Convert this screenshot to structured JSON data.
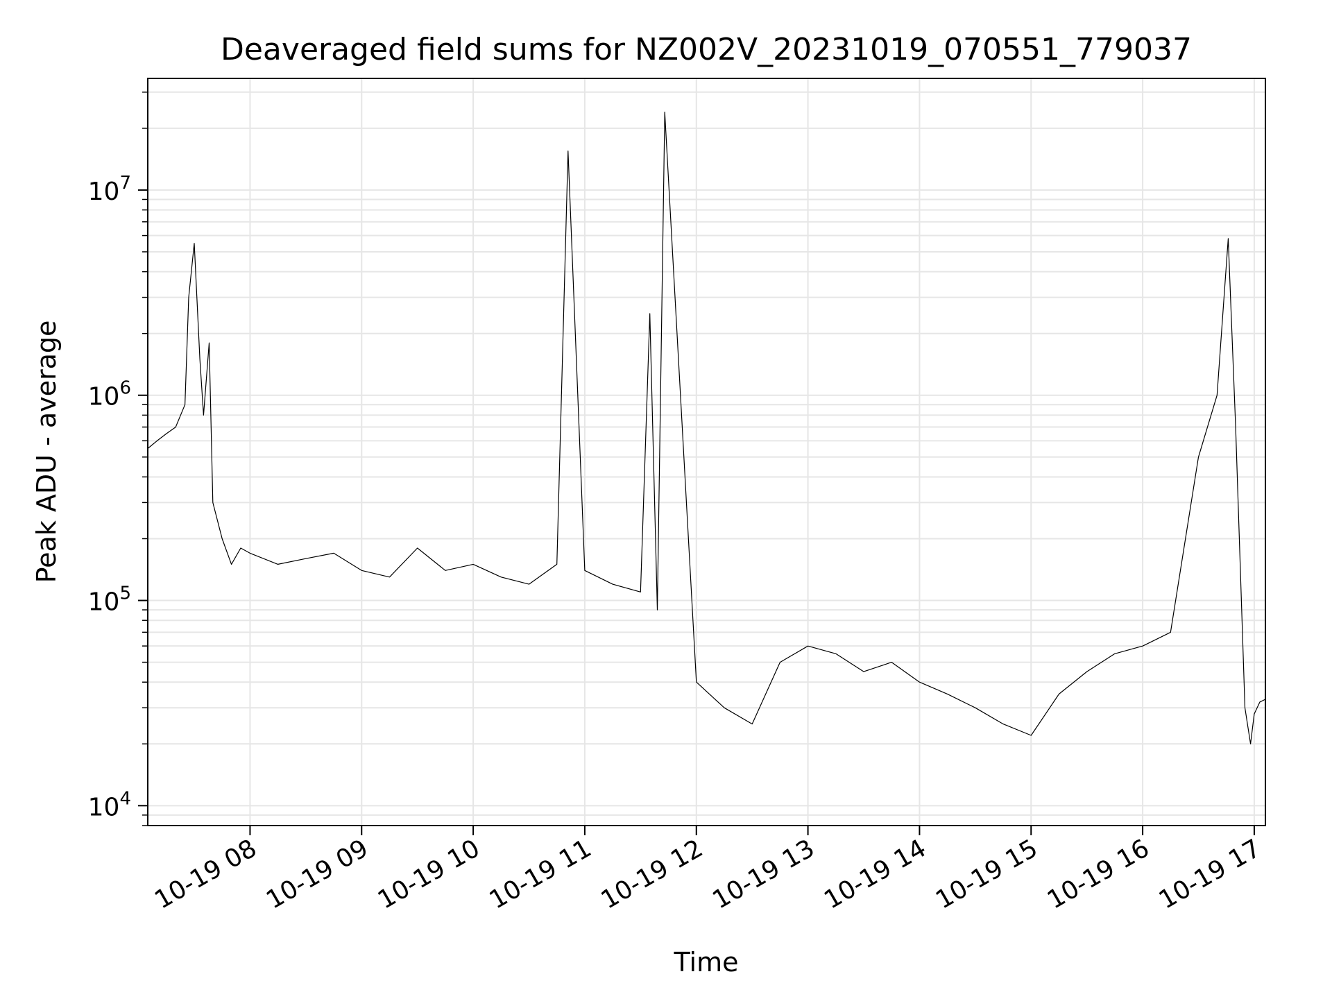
{
  "chart_data": {
    "type": "line",
    "title": "Deaveraged field sums for NZ002V_20231019_070551_779037",
    "xlabel": "Time",
    "ylabel": "Peak ADU - average",
    "x_scale": "time",
    "y_scale": "log",
    "xlim": [
      "2023-10-19 07:05",
      "2023-10-19 17:06"
    ],
    "ylim": [
      8000,
      35000000
    ],
    "grid": true,
    "line_color": "#000000",
    "x_ticks": [
      {
        "label": "10-19 08",
        "value": "2023-10-19 08:00"
      },
      {
        "label": "10-19 09",
        "value": "2023-10-19 09:00"
      },
      {
        "label": "10-19 10",
        "value": "2023-10-19 10:00"
      },
      {
        "label": "10-19 11",
        "value": "2023-10-19 11:00"
      },
      {
        "label": "10-19 12",
        "value": "2023-10-19 12:00"
      },
      {
        "label": "10-19 13",
        "value": "2023-10-19 13:00"
      },
      {
        "label": "10-19 14",
        "value": "2023-10-19 14:00"
      },
      {
        "label": "10-19 15",
        "value": "2023-10-19 15:00"
      },
      {
        "label": "10-19 16",
        "value": "2023-10-19 16:00"
      },
      {
        "label": "10-19 17",
        "value": "2023-10-19 17:00"
      }
    ],
    "y_ticks": [
      {
        "base": "10",
        "exp": "4",
        "value": 10000
      },
      {
        "base": "10",
        "exp": "5",
        "value": 100000
      },
      {
        "base": "10",
        "exp": "6",
        "value": 1000000
      },
      {
        "base": "10",
        "exp": "7",
        "value": 10000000
      }
    ],
    "series": [
      {
        "x": [
          "2023-10-19 07:05",
          "2023-10-19 07:10",
          "2023-10-19 07:15",
          "2023-10-19 07:20",
          "2023-10-19 07:25",
          "2023-10-19 07:27",
          "2023-10-19 07:30",
          "2023-10-19 07:33",
          "2023-10-19 07:35",
          "2023-10-19 07:38",
          "2023-10-19 07:40",
          "2023-10-19 07:45",
          "2023-10-19 07:50",
          "2023-10-19 07:55",
          "2023-10-19 08:00",
          "2023-10-19 08:15",
          "2023-10-19 08:30",
          "2023-10-19 08:45",
          "2023-10-19 09:00",
          "2023-10-19 09:15",
          "2023-10-19 09:30",
          "2023-10-19 09:45",
          "2023-10-19 10:00",
          "2023-10-19 10:15",
          "2023-10-19 10:30",
          "2023-10-19 10:45",
          "2023-10-19 10:51",
          "2023-10-19 11:00",
          "2023-10-19 11:15",
          "2023-10-19 11:30",
          "2023-10-19 11:35",
          "2023-10-19 11:39",
          "2023-10-19 11:43",
          "2023-10-19 12:00",
          "2023-10-19 12:15",
          "2023-10-19 12:30",
          "2023-10-19 12:45",
          "2023-10-19 13:00",
          "2023-10-19 13:15",
          "2023-10-19 13:30",
          "2023-10-19 13:45",
          "2023-10-19 14:00",
          "2023-10-19 14:15",
          "2023-10-19 14:30",
          "2023-10-19 14:45",
          "2023-10-19 15:00",
          "2023-10-19 15:15",
          "2023-10-19 15:30",
          "2023-10-19 15:45",
          "2023-10-19 16:00",
          "2023-10-19 16:15",
          "2023-10-19 16:30",
          "2023-10-19 16:40",
          "2023-10-19 16:46",
          "2023-10-19 16:50",
          "2023-10-19 16:55",
          "2023-10-19 16:58",
          "2023-10-19 17:00",
          "2023-10-19 17:03",
          "2023-10-19 17:06"
        ],
        "y": [
          550000,
          600000,
          650000,
          700000,
          900000,
          3000000,
          5500000,
          1500000,
          800000,
          1800000,
          300000,
          200000,
          150000,
          180000,
          170000,
          150000,
          160000,
          170000,
          140000,
          130000,
          180000,
          140000,
          150000,
          130000,
          120000,
          150000,
          15500000,
          140000,
          120000,
          110000,
          2500000,
          90000,
          24000000,
          40000,
          30000,
          25000,
          50000,
          60000,
          55000,
          45000,
          50000,
          40000,
          35000,
          30000,
          25000,
          22000,
          35000,
          45000,
          55000,
          60000,
          70000,
          500000,
          1000000,
          5800000,
          700000,
          30000,
          20000,
          28000,
          32000,
          33000
        ]
      }
    ]
  }
}
